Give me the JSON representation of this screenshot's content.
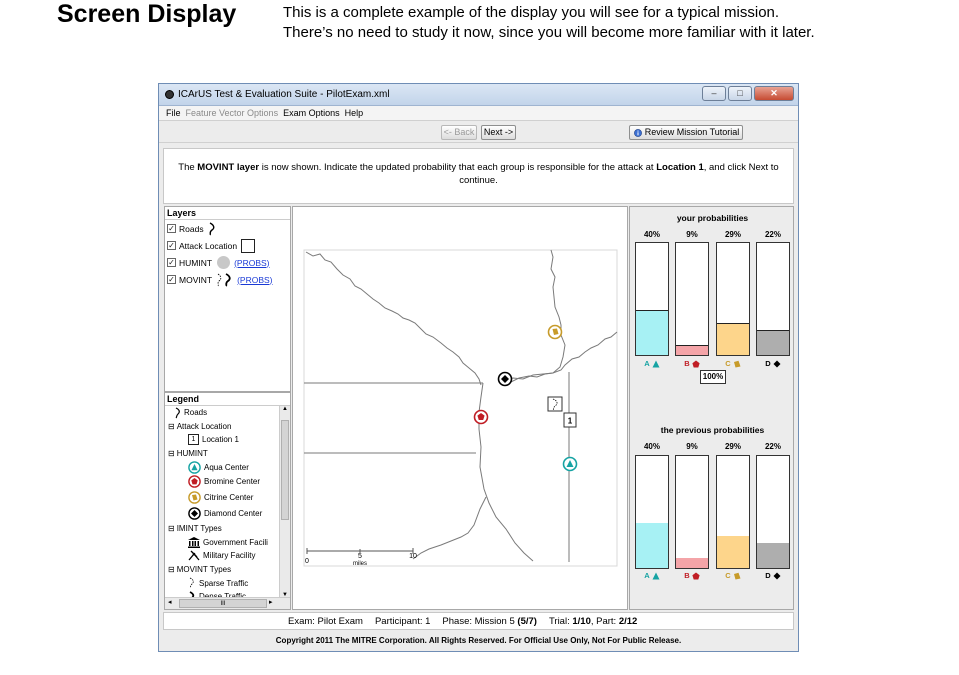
{
  "slide": {
    "title": "Screen Display",
    "desc_line1": "This is a complete example of the display you will see for a typical mission.",
    "desc_line2": "There’s no need to study it now, since you will become more familiar with it later."
  },
  "window": {
    "title": "ICArUS Test & Evaluation Suite - PilotExam.xml",
    "min": "–",
    "max": "□",
    "close": "✕"
  },
  "menu": {
    "file": "File",
    "feature": "Feature Vector Options",
    "exam": "Exam Options",
    "help": "Help"
  },
  "toolbar": {
    "back": "<- Back",
    "next": "Next ->",
    "tutorial": "Review Mission Tutorial"
  },
  "instructions": {
    "p1": "The ",
    "b1": "MOVINT layer",
    "p2": " is now shown. Indicate the updated probability that each group is responsible for the attack at ",
    "b2": "Location 1",
    "p3": ", and click Next to continue."
  },
  "layers": {
    "title": "Layers",
    "items": [
      {
        "label": "Roads",
        "checked": true,
        "link": ""
      },
      {
        "label": "Attack Location",
        "checked": true,
        "link": ""
      },
      {
        "label": "HUMINT",
        "checked": true,
        "link": "(PROBS)"
      },
      {
        "label": "MOVINT",
        "checked": true,
        "link": "(PROBS)"
      }
    ],
    "check": "✓"
  },
  "legend": {
    "title": "Legend",
    "roads": "Roads",
    "attack": "Attack Location",
    "loc_num": "1",
    "loc_label": "Location 1",
    "humint": "HUMINT",
    "aqua": "Aqua Center",
    "bromine": "Bromine Center",
    "citrine": "Citrine Center",
    "diamond": "Diamond Center",
    "imint": "IMINT Types",
    "gov": "Government Facili",
    "mil": "Military Facility",
    "movint": "MOVINT Types",
    "sparse": "Sparse Traffic",
    "dense": "Dense Traffic",
    "collapse": "⊟",
    "scroll_up": "▲",
    "scroll_down": "▼",
    "scroll_left": "◂",
    "scroll_right": "▸",
    "grip": "III"
  },
  "map": {
    "scale_labels": [
      "0",
      "5",
      "10"
    ],
    "scale_unit": "miles",
    "location_label": "1"
  },
  "probabilities": {
    "your_title": "your probabilities",
    "previous_title": "the previous probabilities",
    "total": "100%",
    "groups": [
      {
        "letter": "A",
        "your": 40,
        "previous": 40,
        "color": "#a7f1f4"
      },
      {
        "letter": "B",
        "your": 9,
        "previous": 9,
        "color": "#f4a4a8"
      },
      {
        "letter": "C",
        "your": 29,
        "previous": 29,
        "color": "#fdd58b"
      },
      {
        "letter": "D",
        "your": 22,
        "previous": 22,
        "color": "#aeaeae"
      }
    ]
  },
  "status": {
    "exam": "Exam: Pilot Exam",
    "participant": "Participant: 1",
    "phase_prefix": "Phase: Mission 5 ",
    "phase_bold": "(5/7)",
    "trial_prefix": "Trial: ",
    "trial_bold": "1/10",
    "part_prefix": ", Part: ",
    "part_bold": "2/12"
  },
  "copyright": "Copyright 2011 The MITRE Corporation. All Rights Reserved. For Official Use Only, Not For Public Release."
}
